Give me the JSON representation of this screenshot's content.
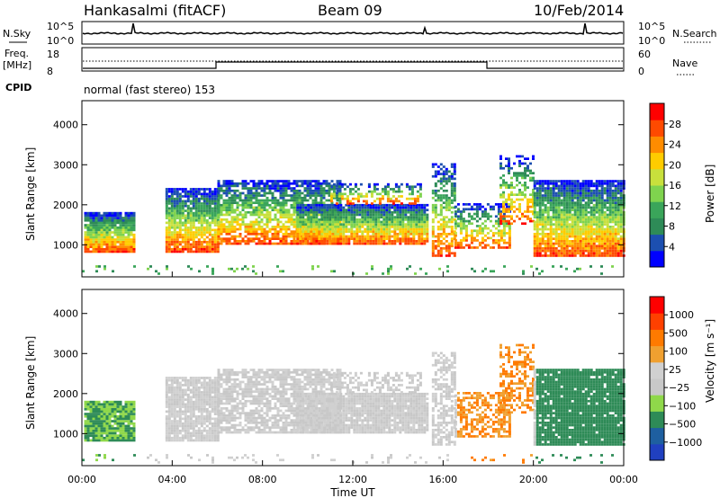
{
  "header": {
    "station": "Hankasalmi (fitACF)",
    "beam": "Beam 09",
    "date": "10/Feb/2014"
  },
  "noise_panel": {
    "left_label": "N.Sky",
    "right_label": "N.Search",
    "left_ticks": [
      "10^5",
      "10^0"
    ],
    "right_ticks": [
      "10^5",
      "10^0"
    ]
  },
  "freq_panel": {
    "left_label_1": "Freq.",
    "left_label_2": "[MHz]",
    "left_ticks": [
      "18",
      "8"
    ],
    "right_label": "Nave",
    "right_ticks": [
      "60",
      "0"
    ]
  },
  "cpid": {
    "label": "CPID",
    "value": "normal (fast stereo) 153"
  },
  "colors": {
    "power_scale": [
      "#0000ff",
      "#1c4fb0",
      "#2e8b57",
      "#3aa55a",
      "#7fd34e",
      "#c8e03c",
      "#ffcc00",
      "#ff8c00",
      "#ff4a00",
      "#ff0000"
    ],
    "velocity_scale": [
      "#2040c0",
      "#1e5fa0",
      "#2e8b57",
      "#8fd84a",
      "#c8c8c8",
      "#d0d0d0",
      "#f0a030",
      "#ff7a00",
      "#ff4000",
      "#ff0000"
    ]
  },
  "chart_data": [
    {
      "type": "heatmap",
      "name": "Power",
      "ylabel": "Slant Range [km]",
      "yticks": [
        "1000",
        "2000",
        "3000",
        "4000"
      ],
      "ylim": [
        200,
        4600
      ],
      "xlim": [
        "00:00",
        "24:00"
      ],
      "colorbar": {
        "label": "Power [dB]",
        "ticks": [
          "4",
          "8",
          "12",
          "16",
          "20",
          "24",
          "28"
        ],
        "range": [
          0,
          32
        ]
      }
    },
    {
      "type": "heatmap",
      "name": "Velocity",
      "ylabel": "Slant Range [km]",
      "yticks": [
        "1000",
        "2000",
        "3000",
        "4000"
      ],
      "ylim": [
        200,
        4600
      ],
      "xlim": [
        "00:00",
        "24:00"
      ],
      "xticks": [
        "00:00",
        "04:00",
        "08:00",
        "12:00",
        "16:00",
        "20:00",
        "00:00"
      ],
      "xlabel": "Time UT",
      "colorbar": {
        "label": "Velocity [m s⁻¹]",
        "ticks": [
          "1000",
          "500",
          "100",
          "25",
          "−25",
          "−100",
          "−500",
          "−1000"
        ]
      }
    }
  ]
}
